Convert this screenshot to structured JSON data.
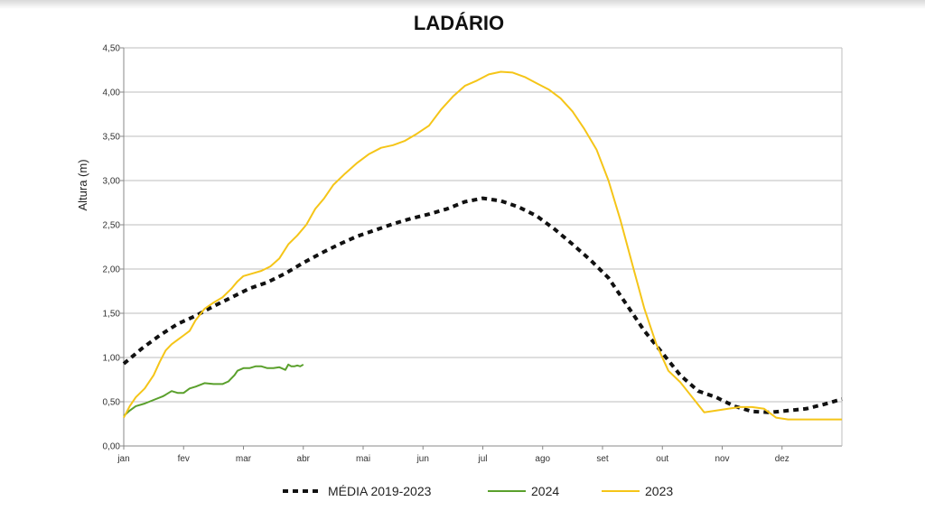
{
  "chart_data": {
    "type": "line",
    "title": "LADÁRIO",
    "xlabel": "",
    "ylabel": "Altura (m)",
    "ylim": [
      0,
      4.5
    ],
    "xlim": [
      0,
      12
    ],
    "yticks": [
      "0,00",
      "0,50",
      "1,00",
      "1,50",
      "2,00",
      "2,50",
      "3,00",
      "3,50",
      "4,00",
      "4,50"
    ],
    "xticks": [
      "jan",
      "fev",
      "mar",
      "abr",
      "mai",
      "jun",
      "jul",
      "ago",
      "set",
      "out",
      "nov",
      "dez"
    ],
    "grid": true,
    "legend_position": "bottom",
    "series": [
      {
        "name": "MÉDIA 2019-2023",
        "color": "#111111",
        "style": "dashed",
        "x": [
          0,
          0.3,
          0.6,
          0.9,
          1.2,
          1.5,
          1.8,
          2.1,
          2.4,
          2.7,
          3.0,
          3.3,
          3.6,
          3.9,
          4.2,
          4.5,
          4.8,
          5.1,
          5.4,
          5.7,
          6.0,
          6.3,
          6.6,
          6.9,
          7.2,
          7.5,
          7.8,
          8.1,
          8.4,
          8.7,
          9.0,
          9.3,
          9.6,
          9.9,
          10.2,
          10.5,
          10.8,
          11.1,
          11.4,
          11.7,
          12.0
        ],
        "y": [
          0.93,
          1.1,
          1.25,
          1.38,
          1.47,
          1.58,
          1.68,
          1.78,
          1.85,
          1.95,
          2.07,
          2.18,
          2.28,
          2.37,
          2.44,
          2.51,
          2.57,
          2.62,
          2.68,
          2.76,
          2.8,
          2.77,
          2.7,
          2.6,
          2.45,
          2.28,
          2.1,
          1.9,
          1.6,
          1.3,
          1.05,
          0.8,
          0.62,
          0.55,
          0.45,
          0.39,
          0.38,
          0.4,
          0.42,
          0.47,
          0.53
        ]
      },
      {
        "name": "2024",
        "color": "#5aa02c",
        "style": "solid",
        "x": [
          0,
          0.1,
          0.2,
          0.35,
          0.5,
          0.65,
          0.7,
          0.8,
          0.9,
          1.0,
          1.1,
          1.2,
          1.35,
          1.5,
          1.65,
          1.75,
          1.85,
          1.9,
          2.0,
          2.1,
          2.2,
          2.3,
          2.4,
          2.5,
          2.6,
          2.7,
          2.75,
          2.8,
          2.85,
          2.9,
          2.95,
          3.0
        ],
        "y": [
          0.34,
          0.4,
          0.45,
          0.48,
          0.52,
          0.56,
          0.58,
          0.62,
          0.6,
          0.6,
          0.65,
          0.67,
          0.71,
          0.7,
          0.7,
          0.73,
          0.8,
          0.85,
          0.88,
          0.88,
          0.9,
          0.9,
          0.88,
          0.88,
          0.89,
          0.86,
          0.92,
          0.9,
          0.9,
          0.91,
          0.9,
          0.92
        ]
      },
      {
        "name": "2023",
        "color": "#f5c518",
        "style": "solid",
        "x": [
          0,
          0.1,
          0.2,
          0.35,
          0.5,
          0.6,
          0.7,
          0.8,
          0.9,
          1.0,
          1.1,
          1.2,
          1.35,
          1.5,
          1.65,
          1.8,
          1.9,
          2.0,
          2.15,
          2.3,
          2.45,
          2.6,
          2.75,
          2.9,
          3.05,
          3.2,
          3.35,
          3.5,
          3.7,
          3.9,
          4.1,
          4.3,
          4.5,
          4.7,
          4.9,
          5.1,
          5.3,
          5.5,
          5.7,
          5.9,
          6.1,
          6.3,
          6.5,
          6.7,
          6.9,
          7.1,
          7.3,
          7.5,
          7.7,
          7.9,
          8.1,
          8.3,
          8.5,
          8.7,
          8.9,
          9.1,
          9.3,
          9.5,
          9.7,
          9.9,
          10.1,
          10.3,
          10.5,
          10.7,
          10.9,
          11.1,
          11.3,
          11.5,
          11.7,
          11.85,
          12.0
        ],
        "y": [
          0.32,
          0.45,
          0.55,
          0.65,
          0.8,
          0.95,
          1.08,
          1.15,
          1.2,
          1.25,
          1.3,
          1.42,
          1.55,
          1.62,
          1.68,
          1.78,
          1.86,
          1.92,
          1.95,
          1.98,
          2.03,
          2.12,
          2.28,
          2.38,
          2.5,
          2.68,
          2.8,
          2.95,
          3.08,
          3.2,
          3.3,
          3.37,
          3.4,
          3.45,
          3.53,
          3.62,
          3.8,
          3.95,
          4.07,
          4.13,
          4.2,
          4.23,
          4.22,
          4.17,
          4.1,
          4.03,
          3.93,
          3.78,
          3.58,
          3.35,
          3.0,
          2.55,
          2.05,
          1.55,
          1.15,
          0.85,
          0.72,
          0.55,
          0.38,
          0.4,
          0.42,
          0.44,
          0.44,
          0.42,
          0.32,
          0.3,
          0.3,
          0.3,
          0.3,
          0.3,
          0.3
        ]
      }
    ]
  }
}
